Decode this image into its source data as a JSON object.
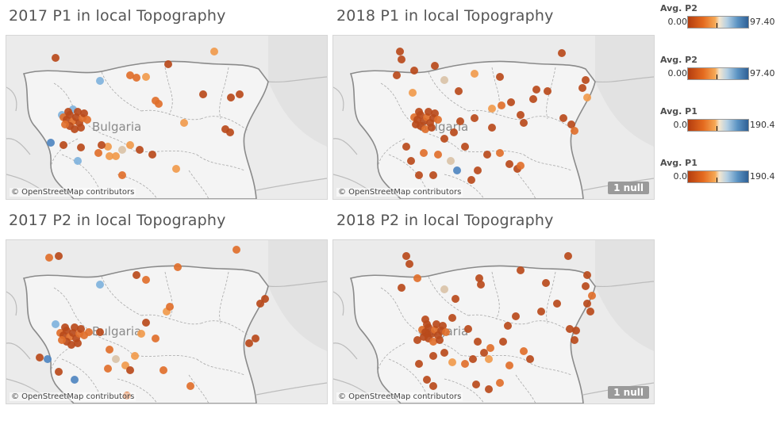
{
  "panels": [
    {
      "title": "2017 P1 in local Topography",
      "attribution": "© OpenStreetMap contributors",
      "null_label": "",
      "map_label": "Bulgaria"
    },
    {
      "title": "2018 P1 in local Topography",
      "attribution": "© OpenStreetMap contributors",
      "null_label": "1 null",
      "map_label": "Bulgaria"
    },
    {
      "title": "2017 P2 in local Topography",
      "attribution": "© OpenStreetMap contributors",
      "null_label": "",
      "map_label": "Bulgaria"
    },
    {
      "title": "2018 P2 in local Topography",
      "attribution": "© OpenStreetMap contributors",
      "null_label": "1 null",
      "map_label": "Bulgaria"
    }
  ],
  "legends": [
    {
      "title": "Avg. P2",
      "min": "0.00",
      "max": "97.40"
    },
    {
      "title": "Avg. P2",
      "min": "0.00",
      "max": "97.40"
    },
    {
      "title": "Avg. P1",
      "min": "0.0",
      "max": "190.4"
    },
    {
      "title": "Avg. P1",
      "min": "0.0",
      "max": "190.4"
    }
  ],
  "colors": {
    "dark_orange": "#b84a1b",
    "orange": "#df6f2b",
    "light_orange": "#f09a4c",
    "pale": "#d9c2a7",
    "light_blue": "#7fb2dc",
    "blue": "#4f86c0",
    "map_bg": "#ebebeb",
    "border": "#8a8a8a"
  }
}
